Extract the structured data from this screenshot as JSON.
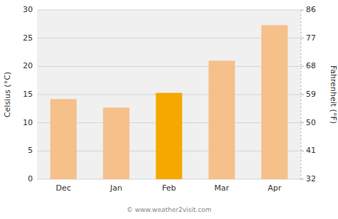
{
  "chart_data": {
    "type": "bar",
    "categories": [
      "Dec",
      "Jan",
      "Feb",
      "Mar",
      "Apr"
    ],
    "values": [
      14.2,
      12.7,
      15.3,
      21.0,
      27.3
    ],
    "colors": [
      "#f5c08a",
      "#f5c08a",
      "#f5a800",
      "#f5c08a",
      "#f5c08a"
    ],
    "ylabel": "Celsius (°C)",
    "y2label": "Fahrenheit (°F)",
    "ylim": [
      0,
      30
    ],
    "yticks": [
      0,
      5,
      10,
      15,
      20,
      25,
      30
    ],
    "y2lim": [
      32,
      86
    ],
    "y2ticks": [
      32,
      41,
      50,
      59,
      68,
      77,
      86
    ],
    "grid": true,
    "annotations": [
      "© www.weather2visit.com"
    ]
  }
}
